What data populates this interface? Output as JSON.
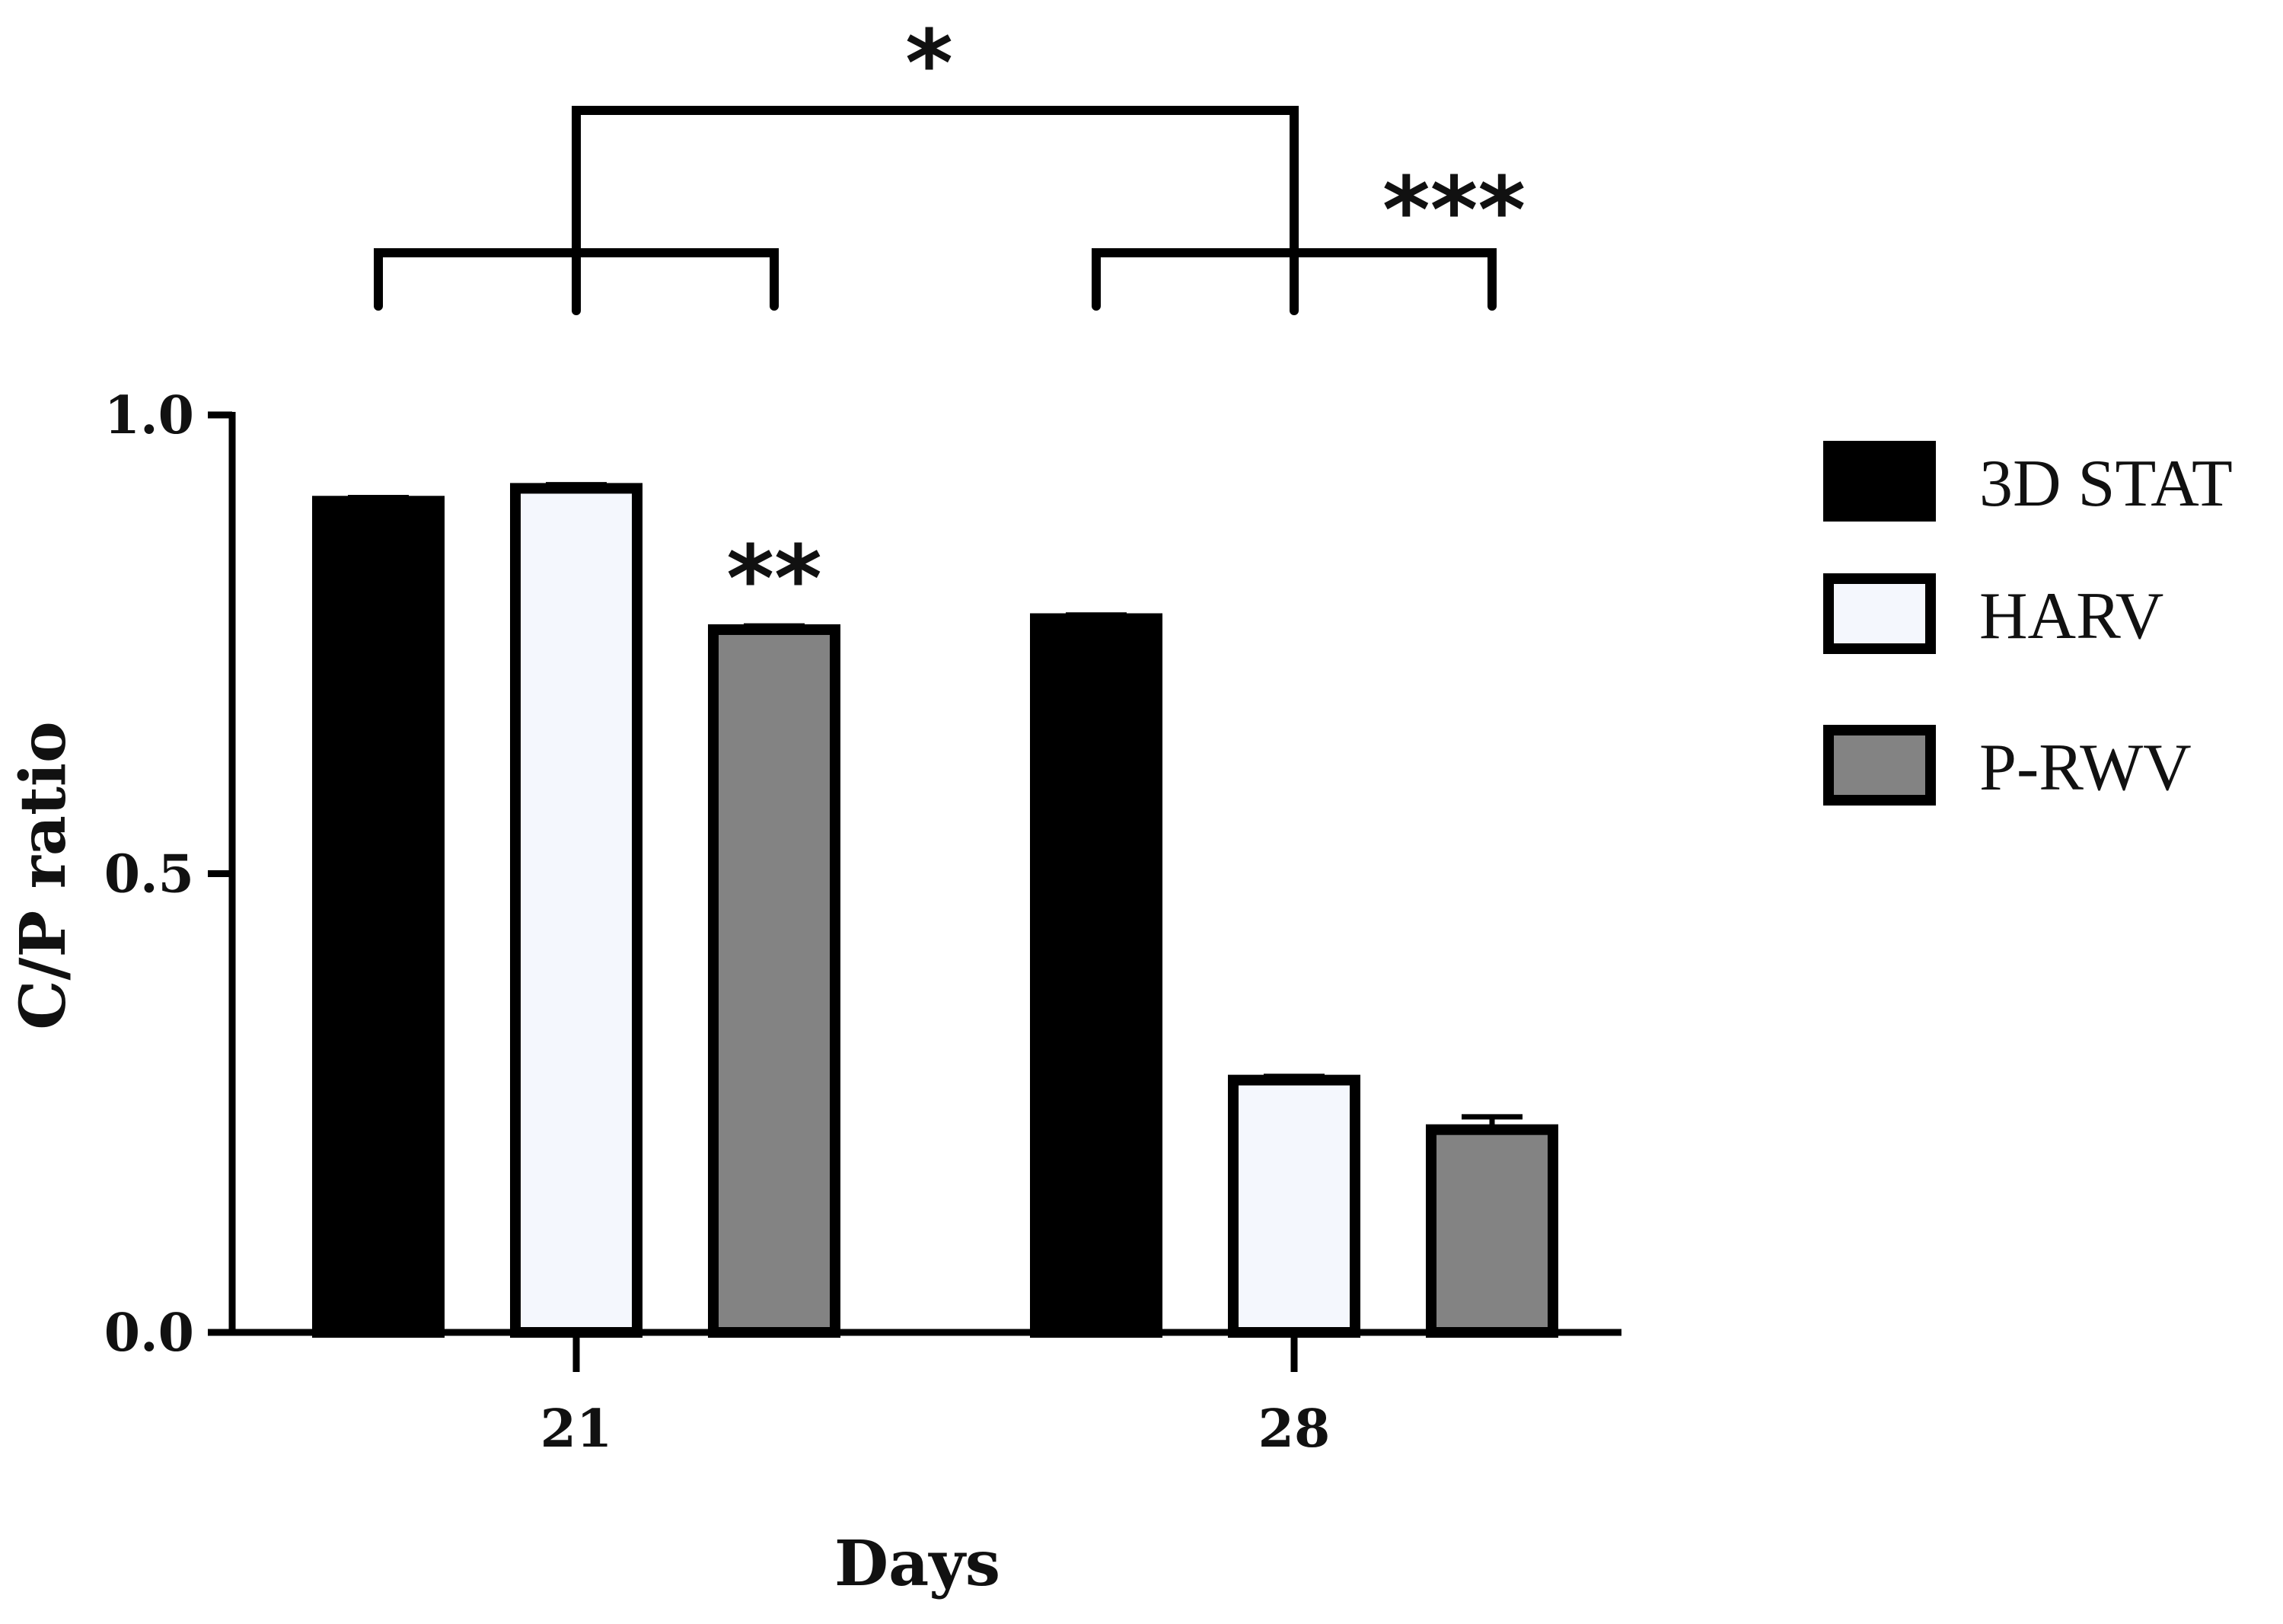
{
  "chart_data": {
    "type": "bar",
    "categories": [
      "21",
      "28"
    ],
    "series": [
      {
        "name": "3D STAT",
        "values": [
          0.906,
          0.778
        ],
        "errors": [
          0.004,
          0.004
        ],
        "color": "#000000"
      },
      {
        "name": "HARV",
        "values": [
          0.92,
          0.275
        ],
        "errors": [
          0.004,
          0.004
        ],
        "color": "#f4f7fd"
      },
      {
        "name": "P-RWV",
        "values": [
          0.766,
          0.221
        ],
        "errors": [
          0.004,
          0.014
        ],
        "color": "#838383"
      }
    ],
    "xlabel": "Days",
    "ylabel": "C/P ratio",
    "ylim": [
      0,
      1
    ],
    "yticks": [
      {
        "value": 0,
        "label": "0.0"
      },
      {
        "value": 0.5,
        "label": "0.5"
      },
      {
        "value": 1,
        "label": "1.0"
      }
    ],
    "grid": false,
    "legend": "right",
    "annotations": [
      {
        "text": "**",
        "category": "21",
        "series": "P-RWV"
      },
      {
        "text": "***",
        "category": "28",
        "between": [
          "HARV",
          "P-RWV"
        ]
      },
      {
        "text": "*",
        "between_categories": [
          "21",
          "28"
        ]
      }
    ]
  }
}
